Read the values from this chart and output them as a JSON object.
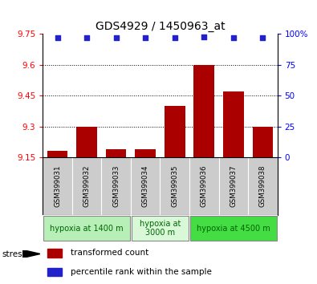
{
  "title": "GDS4929 / 1450963_at",
  "samples": [
    "GSM399031",
    "GSM399032",
    "GSM399033",
    "GSM399034",
    "GSM399035",
    "GSM399036",
    "GSM399037",
    "GSM399038"
  ],
  "red_values": [
    9.18,
    9.3,
    9.19,
    9.19,
    9.4,
    9.6,
    9.47,
    9.3
  ],
  "blue_values": [
    97,
    97,
    97,
    97,
    97,
    98,
    97,
    97
  ],
  "ylim_left": [
    9.15,
    9.75
  ],
  "yticks_left": [
    9.15,
    9.3,
    9.45,
    9.6,
    9.75
  ],
  "ylim_right": [
    0,
    100
  ],
  "yticks_right": [
    0,
    25,
    50,
    75,
    100
  ],
  "yticklabels_right": [
    "0",
    "25",
    "50",
    "75",
    "100%"
  ],
  "grid_values": [
    9.3,
    9.45,
    9.6
  ],
  "groups": [
    {
      "label": "hypoxia at 1400 m",
      "start": 0,
      "end": 2,
      "color": "#b8f0b8"
    },
    {
      "label": "hypoxia at\n3000 m",
      "start": 3,
      "end": 4,
      "color": "#d8f8d8"
    },
    {
      "label": "hypoxia at 4500 m",
      "start": 5,
      "end": 7,
      "color": "#44ee44"
    }
  ],
  "legend_red_label": "transformed count",
  "legend_blue_label": "percentile rank within the sample",
  "stress_label": "stress",
  "bar_color": "#aa0000",
  "dot_color": "#2222cc",
  "bar_width": 0.7,
  "sample_bg": "#cccccc",
  "group_border_color": "#888888"
}
